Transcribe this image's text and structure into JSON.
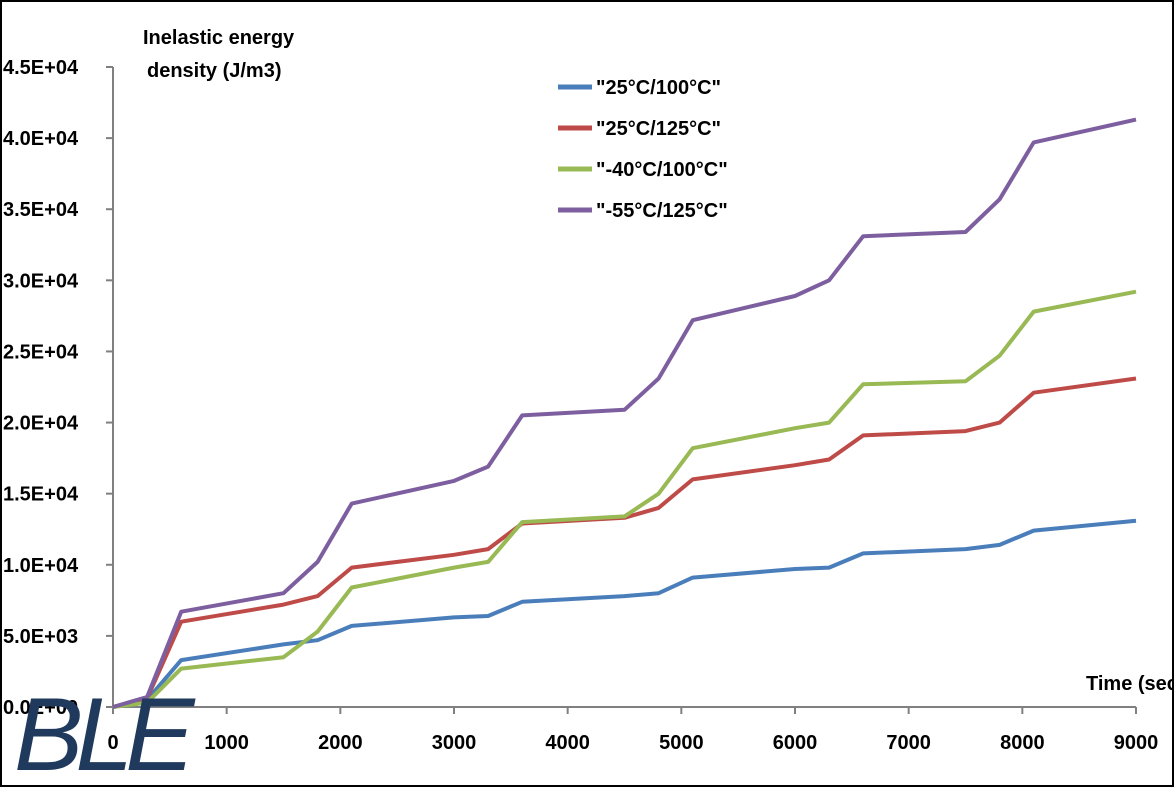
{
  "chart_data": {
    "type": "line",
    "ylabel_line1": "Inelastic energy",
    "ylabel_line2": "density  (J/m3)",
    "xlabel": "Time (sec)",
    "xlim": [
      0,
      9000
    ],
    "ylim": [
      0,
      45000
    ],
    "x_ticks": [
      "0",
      "1000",
      "2000",
      "3000",
      "4000",
      "5000",
      "6000",
      "7000",
      "8000",
      "9000"
    ],
    "y_ticks": [
      "0.0E+00",
      "5.0E+03",
      "1.0E+04",
      "1.5E+04",
      "2.0E+04",
      "2.5E+04",
      "3.0E+04",
      "3.5E+04",
      "4.0E+04",
      "4.5E+04"
    ],
    "legend_position": "top-center",
    "grid": false,
    "series": [
      {
        "name": "\"25°C/100°C\"",
        "color": "#4a7ebb",
        "x": [
          0,
          300,
          600,
          1500,
          1800,
          2100,
          3000,
          3300,
          3600,
          4500,
          4800,
          5100,
          6000,
          6300,
          6600,
          7500,
          7800,
          8100,
          9000
        ],
        "y": [
          0,
          500,
          3300,
          4400,
          4700,
          5700,
          6300,
          6400,
          7400,
          7800,
          8000,
          9100,
          9700,
          9800,
          10800,
          11100,
          11400,
          12400,
          13100
        ]
      },
      {
        "name": "\"25°C/125°C\"",
        "color": "#be4b48",
        "x": [
          0,
          300,
          600,
          1500,
          1800,
          2100,
          3000,
          3300,
          3600,
          4500,
          4800,
          5100,
          6000,
          6300,
          6600,
          7500,
          7800,
          8100,
          9000
        ],
        "y": [
          0,
          600,
          6000,
          7200,
          7800,
          9800,
          10700,
          11100,
          12900,
          13300,
          14000,
          16000,
          17000,
          17400,
          19100,
          19400,
          20000,
          22100,
          23100
        ]
      },
      {
        "name": "\"-40°C/100°C\"",
        "color": "#98b954",
        "x": [
          0,
          300,
          600,
          1500,
          1800,
          2100,
          3000,
          3300,
          3600,
          4500,
          4800,
          5100,
          6000,
          6300,
          6600,
          7500,
          7800,
          8100,
          9000
        ],
        "y": [
          0,
          300,
          2700,
          3500,
          5300,
          8400,
          9800,
          10200,
          13000,
          13400,
          15000,
          18200,
          19600,
          20000,
          22700,
          22900,
          24700,
          27800,
          29200
        ]
      },
      {
        "name": "\"-55°C/125°C\"",
        "color": "#7d5fa0",
        "x": [
          0,
          300,
          600,
          1500,
          1800,
          2100,
          3000,
          3300,
          3600,
          4500,
          4800,
          5100,
          6000,
          6300,
          6600,
          7500,
          7800,
          8100,
          9000
        ],
        "y": [
          0,
          700,
          6700,
          8000,
          10200,
          14300,
          15900,
          16900,
          20500,
          20900,
          23100,
          27200,
          28900,
          30000,
          33100,
          33400,
          35700,
          39700,
          41300
        ]
      }
    ]
  },
  "watermark": {
    "text": "BLE",
    "color": "#1f3a5c"
  }
}
